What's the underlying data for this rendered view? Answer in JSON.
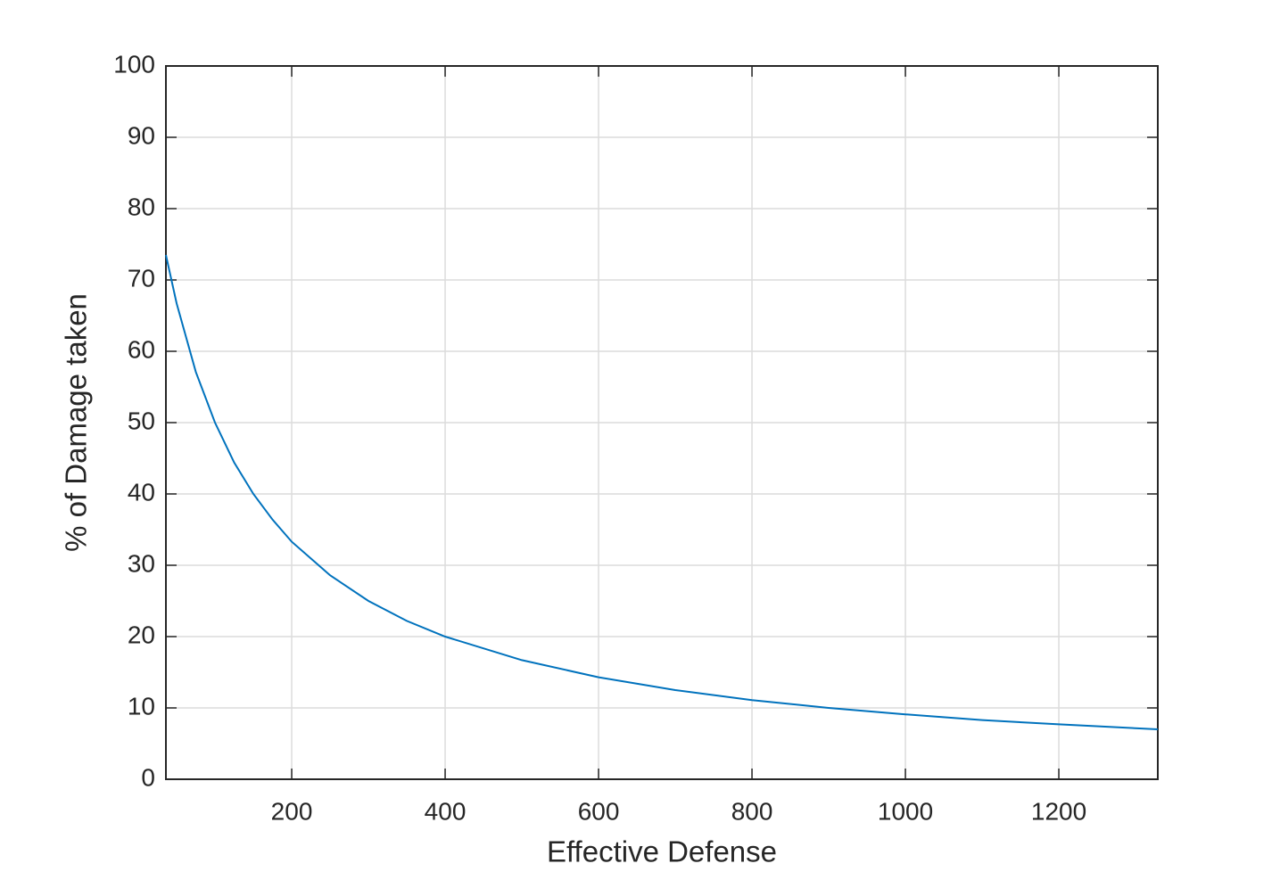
{
  "chart_data": {
    "type": "line",
    "x_label": "Effective Defense",
    "y_label": "% of Damage taken",
    "x": [
      36,
      50,
      75,
      100,
      125,
      150,
      175,
      200,
      250,
      300,
      350,
      400,
      500,
      600,
      700,
      800,
      900,
      1000,
      1100,
      1200,
      1329
    ],
    "series": [
      {
        "color": "#0072bd",
        "values": [
          73.5,
          66.7,
          57.1,
          50,
          44.4,
          40,
          36.4,
          33.3,
          28.6,
          25,
          22.2,
          20,
          16.7,
          14.3,
          12.5,
          11.1,
          10,
          9.1,
          8.3,
          7.7,
          7.0
        ]
      }
    ],
    "xlim": [
      36,
      1329
    ],
    "xticks": [
      200,
      400,
      600,
      800,
      1000,
      1200
    ],
    "ylim": [
      0,
      100
    ],
    "yticks": [
      0,
      10,
      20,
      30,
      40,
      50,
      60,
      70,
      80,
      90,
      100
    ],
    "grid": true
  }
}
